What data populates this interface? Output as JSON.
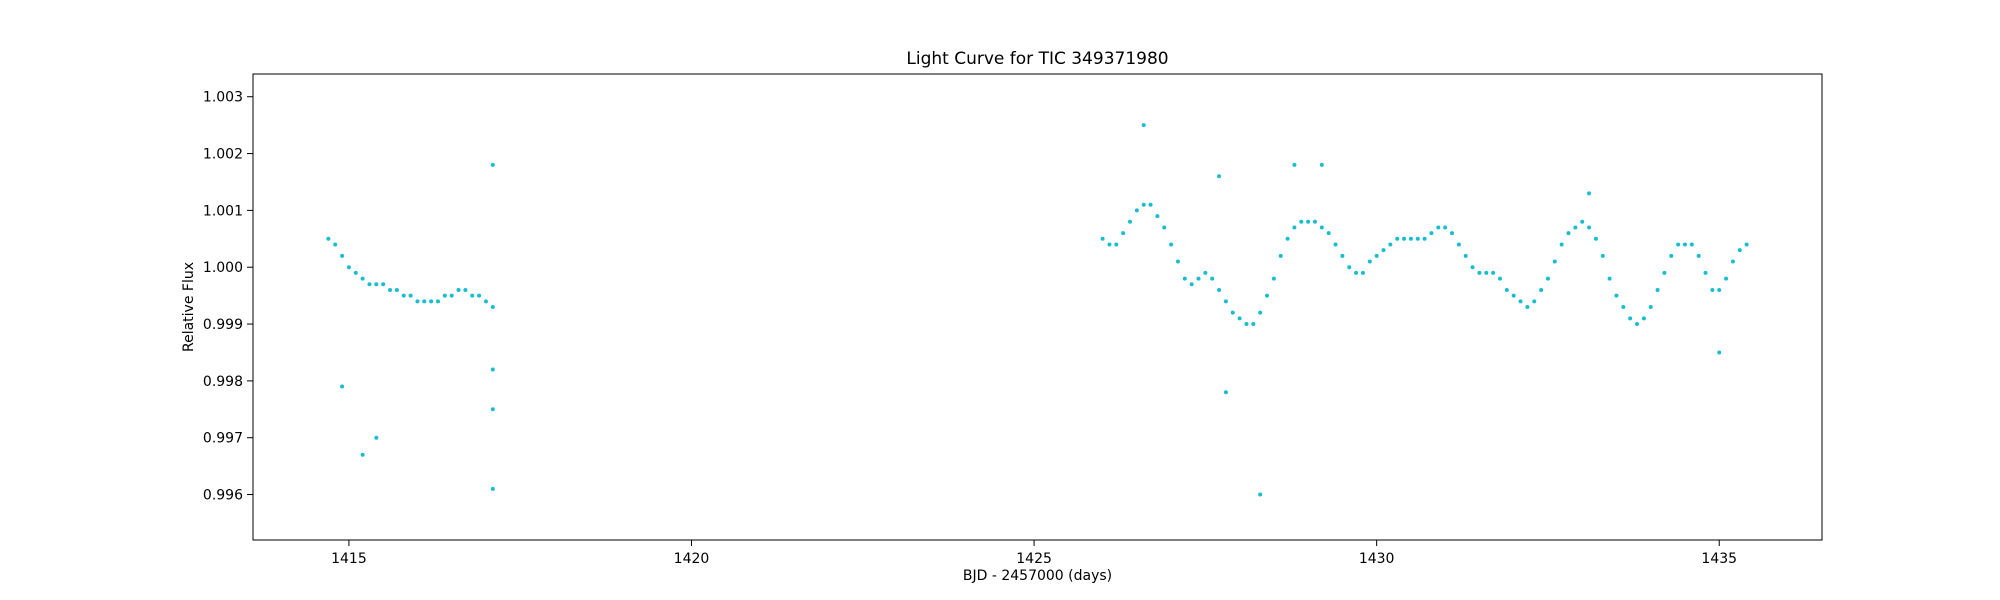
{
  "chart_data": {
    "type": "scatter",
    "title": "Light Curve for TIC 349371980",
    "xlabel": "BJD - 2457000 (days)",
    "ylabel": "Relative Flux",
    "xlim": [
      1413.6,
      1436.5
    ],
    "ylim": [
      0.9952,
      1.0034
    ],
    "xticks": [
      1415,
      1420,
      1425,
      1430,
      1435
    ],
    "xtick_labels": [
      "1415",
      "1420",
      "1425",
      "1430",
      "1435"
    ],
    "yticks": [
      0.996,
      0.997,
      0.998,
      0.999,
      1.0,
      1.001,
      1.002,
      1.003
    ],
    "ytick_labels": [
      "0.996",
      "0.997",
      "0.998",
      "0.999",
      "1.000",
      "1.001",
      "1.002",
      "1.003"
    ],
    "grid": false,
    "marker_color": "#17becf",
    "series": [
      {
        "points": [
          [
            1414.7,
            1.0005
          ],
          [
            1414.8,
            1.0004
          ],
          [
            1414.9,
            1.0002
          ],
          [
            1415.0,
            1.0
          ],
          [
            1415.1,
            0.9999
          ],
          [
            1415.2,
            0.9998
          ],
          [
            1415.3,
            0.9997
          ],
          [
            1415.4,
            0.9997
          ],
          [
            1415.5,
            0.9997
          ],
          [
            1415.6,
            0.9996
          ],
          [
            1415.7,
            0.9996
          ],
          [
            1415.8,
            0.9995
          ],
          [
            1415.9,
            0.9995
          ],
          [
            1416.0,
            0.9994
          ],
          [
            1416.1,
            0.9994
          ],
          [
            1416.2,
            0.9994
          ],
          [
            1416.3,
            0.9994
          ],
          [
            1416.4,
            0.9995
          ],
          [
            1416.5,
            0.9995
          ],
          [
            1416.6,
            0.9996
          ],
          [
            1416.7,
            0.9996
          ],
          [
            1416.8,
            0.9995
          ],
          [
            1416.9,
            0.9995
          ],
          [
            1417.0,
            0.9994
          ],
          [
            1417.1,
            0.9993
          ],
          [
            1417.1,
            0.9982
          ],
          [
            1417.1,
            0.9975
          ],
          [
            1417.1,
            0.9961
          ],
          [
            1417.1,
            1.0018
          ],
          [
            1415.2,
            0.9967
          ],
          [
            1415.4,
            0.997
          ],
          [
            1414.9,
            0.9979
          ],
          [
            1426.0,
            1.0005
          ],
          [
            1426.1,
            1.0004
          ],
          [
            1426.2,
            1.0004
          ],
          [
            1426.3,
            1.0006
          ],
          [
            1426.4,
            1.0008
          ],
          [
            1426.5,
            1.001
          ],
          [
            1426.6,
            1.0011
          ],
          [
            1426.7,
            1.0011
          ],
          [
            1426.8,
            1.0009
          ],
          [
            1426.9,
            1.0007
          ],
          [
            1427.0,
            1.0004
          ],
          [
            1427.1,
            1.0001
          ],
          [
            1427.2,
            0.9998
          ],
          [
            1427.3,
            0.9997
          ],
          [
            1427.4,
            0.9998
          ],
          [
            1427.5,
            0.9999
          ],
          [
            1427.6,
            0.9998
          ],
          [
            1427.7,
            0.9996
          ],
          [
            1427.8,
            0.9994
          ],
          [
            1427.9,
            0.9992
          ],
          [
            1428.0,
            0.9991
          ],
          [
            1428.1,
            0.999
          ],
          [
            1428.2,
            0.999
          ],
          [
            1428.3,
            0.9992
          ],
          [
            1428.4,
            0.9995
          ],
          [
            1428.5,
            0.9998
          ],
          [
            1428.6,
            1.0002
          ],
          [
            1428.7,
            1.0005
          ],
          [
            1428.8,
            1.0007
          ],
          [
            1428.9,
            1.0008
          ],
          [
            1429.0,
            1.0008
          ],
          [
            1429.1,
            1.0008
          ],
          [
            1429.2,
            1.0007
          ],
          [
            1429.3,
            1.0006
          ],
          [
            1429.4,
            1.0004
          ],
          [
            1429.5,
            1.0002
          ],
          [
            1429.6,
            1.0
          ],
          [
            1429.7,
            0.9999
          ],
          [
            1429.8,
            0.9999
          ],
          [
            1429.9,
            1.0001
          ],
          [
            1430.0,
            1.0002
          ],
          [
            1430.1,
            1.0003
          ],
          [
            1430.2,
            1.0004
          ],
          [
            1430.3,
            1.0005
          ],
          [
            1430.4,
            1.0005
          ],
          [
            1430.5,
            1.0005
          ],
          [
            1430.6,
            1.0005
          ],
          [
            1430.7,
            1.0005
          ],
          [
            1430.8,
            1.0006
          ],
          [
            1430.9,
            1.0007
          ],
          [
            1431.0,
            1.0007
          ],
          [
            1431.1,
            1.0006
          ],
          [
            1431.2,
            1.0004
          ],
          [
            1431.3,
            1.0002
          ],
          [
            1431.4,
            1.0
          ],
          [
            1431.5,
            0.9999
          ],
          [
            1431.6,
            0.9999
          ],
          [
            1431.7,
            0.9999
          ],
          [
            1431.8,
            0.9998
          ],
          [
            1431.9,
            0.9996
          ],
          [
            1432.0,
            0.9995
          ],
          [
            1432.1,
            0.9994
          ],
          [
            1432.2,
            0.9993
          ],
          [
            1432.3,
            0.9994
          ],
          [
            1432.4,
            0.9996
          ],
          [
            1432.5,
            0.9998
          ],
          [
            1432.6,
            1.0001
          ],
          [
            1432.7,
            1.0004
          ],
          [
            1432.8,
            1.0006
          ],
          [
            1432.9,
            1.0007
          ],
          [
            1433.0,
            1.0008
          ],
          [
            1433.1,
            1.0007
          ],
          [
            1433.2,
            1.0005
          ],
          [
            1433.3,
            1.0002
          ],
          [
            1433.4,
            0.9998
          ],
          [
            1433.5,
            0.9995
          ],
          [
            1433.6,
            0.9993
          ],
          [
            1433.7,
            0.9991
          ],
          [
            1433.8,
            0.999
          ],
          [
            1433.9,
            0.9991
          ],
          [
            1434.0,
            0.9993
          ],
          [
            1434.1,
            0.9996
          ],
          [
            1434.2,
            0.9999
          ],
          [
            1434.3,
            1.0002
          ],
          [
            1434.4,
            1.0004
          ],
          [
            1434.5,
            1.0004
          ],
          [
            1434.6,
            1.0004
          ],
          [
            1434.7,
            1.0002
          ],
          [
            1434.8,
            0.9999
          ],
          [
            1434.9,
            0.9996
          ],
          [
            1435.0,
            0.9996
          ],
          [
            1435.1,
            0.9998
          ],
          [
            1435.2,
            1.0001
          ],
          [
            1435.3,
            1.0003
          ],
          [
            1435.4,
            1.0004
          ],
          [
            1426.6,
            1.0025
          ],
          [
            1427.8,
            0.9978
          ],
          [
            1428.3,
            0.996
          ],
          [
            1428.8,
            1.0018
          ],
          [
            1429.2,
            1.0018
          ],
          [
            1427.7,
            1.0016
          ],
          [
            1435.0,
            0.9985
          ],
          [
            1433.1,
            1.0013
          ]
        ]
      }
    ]
  }
}
